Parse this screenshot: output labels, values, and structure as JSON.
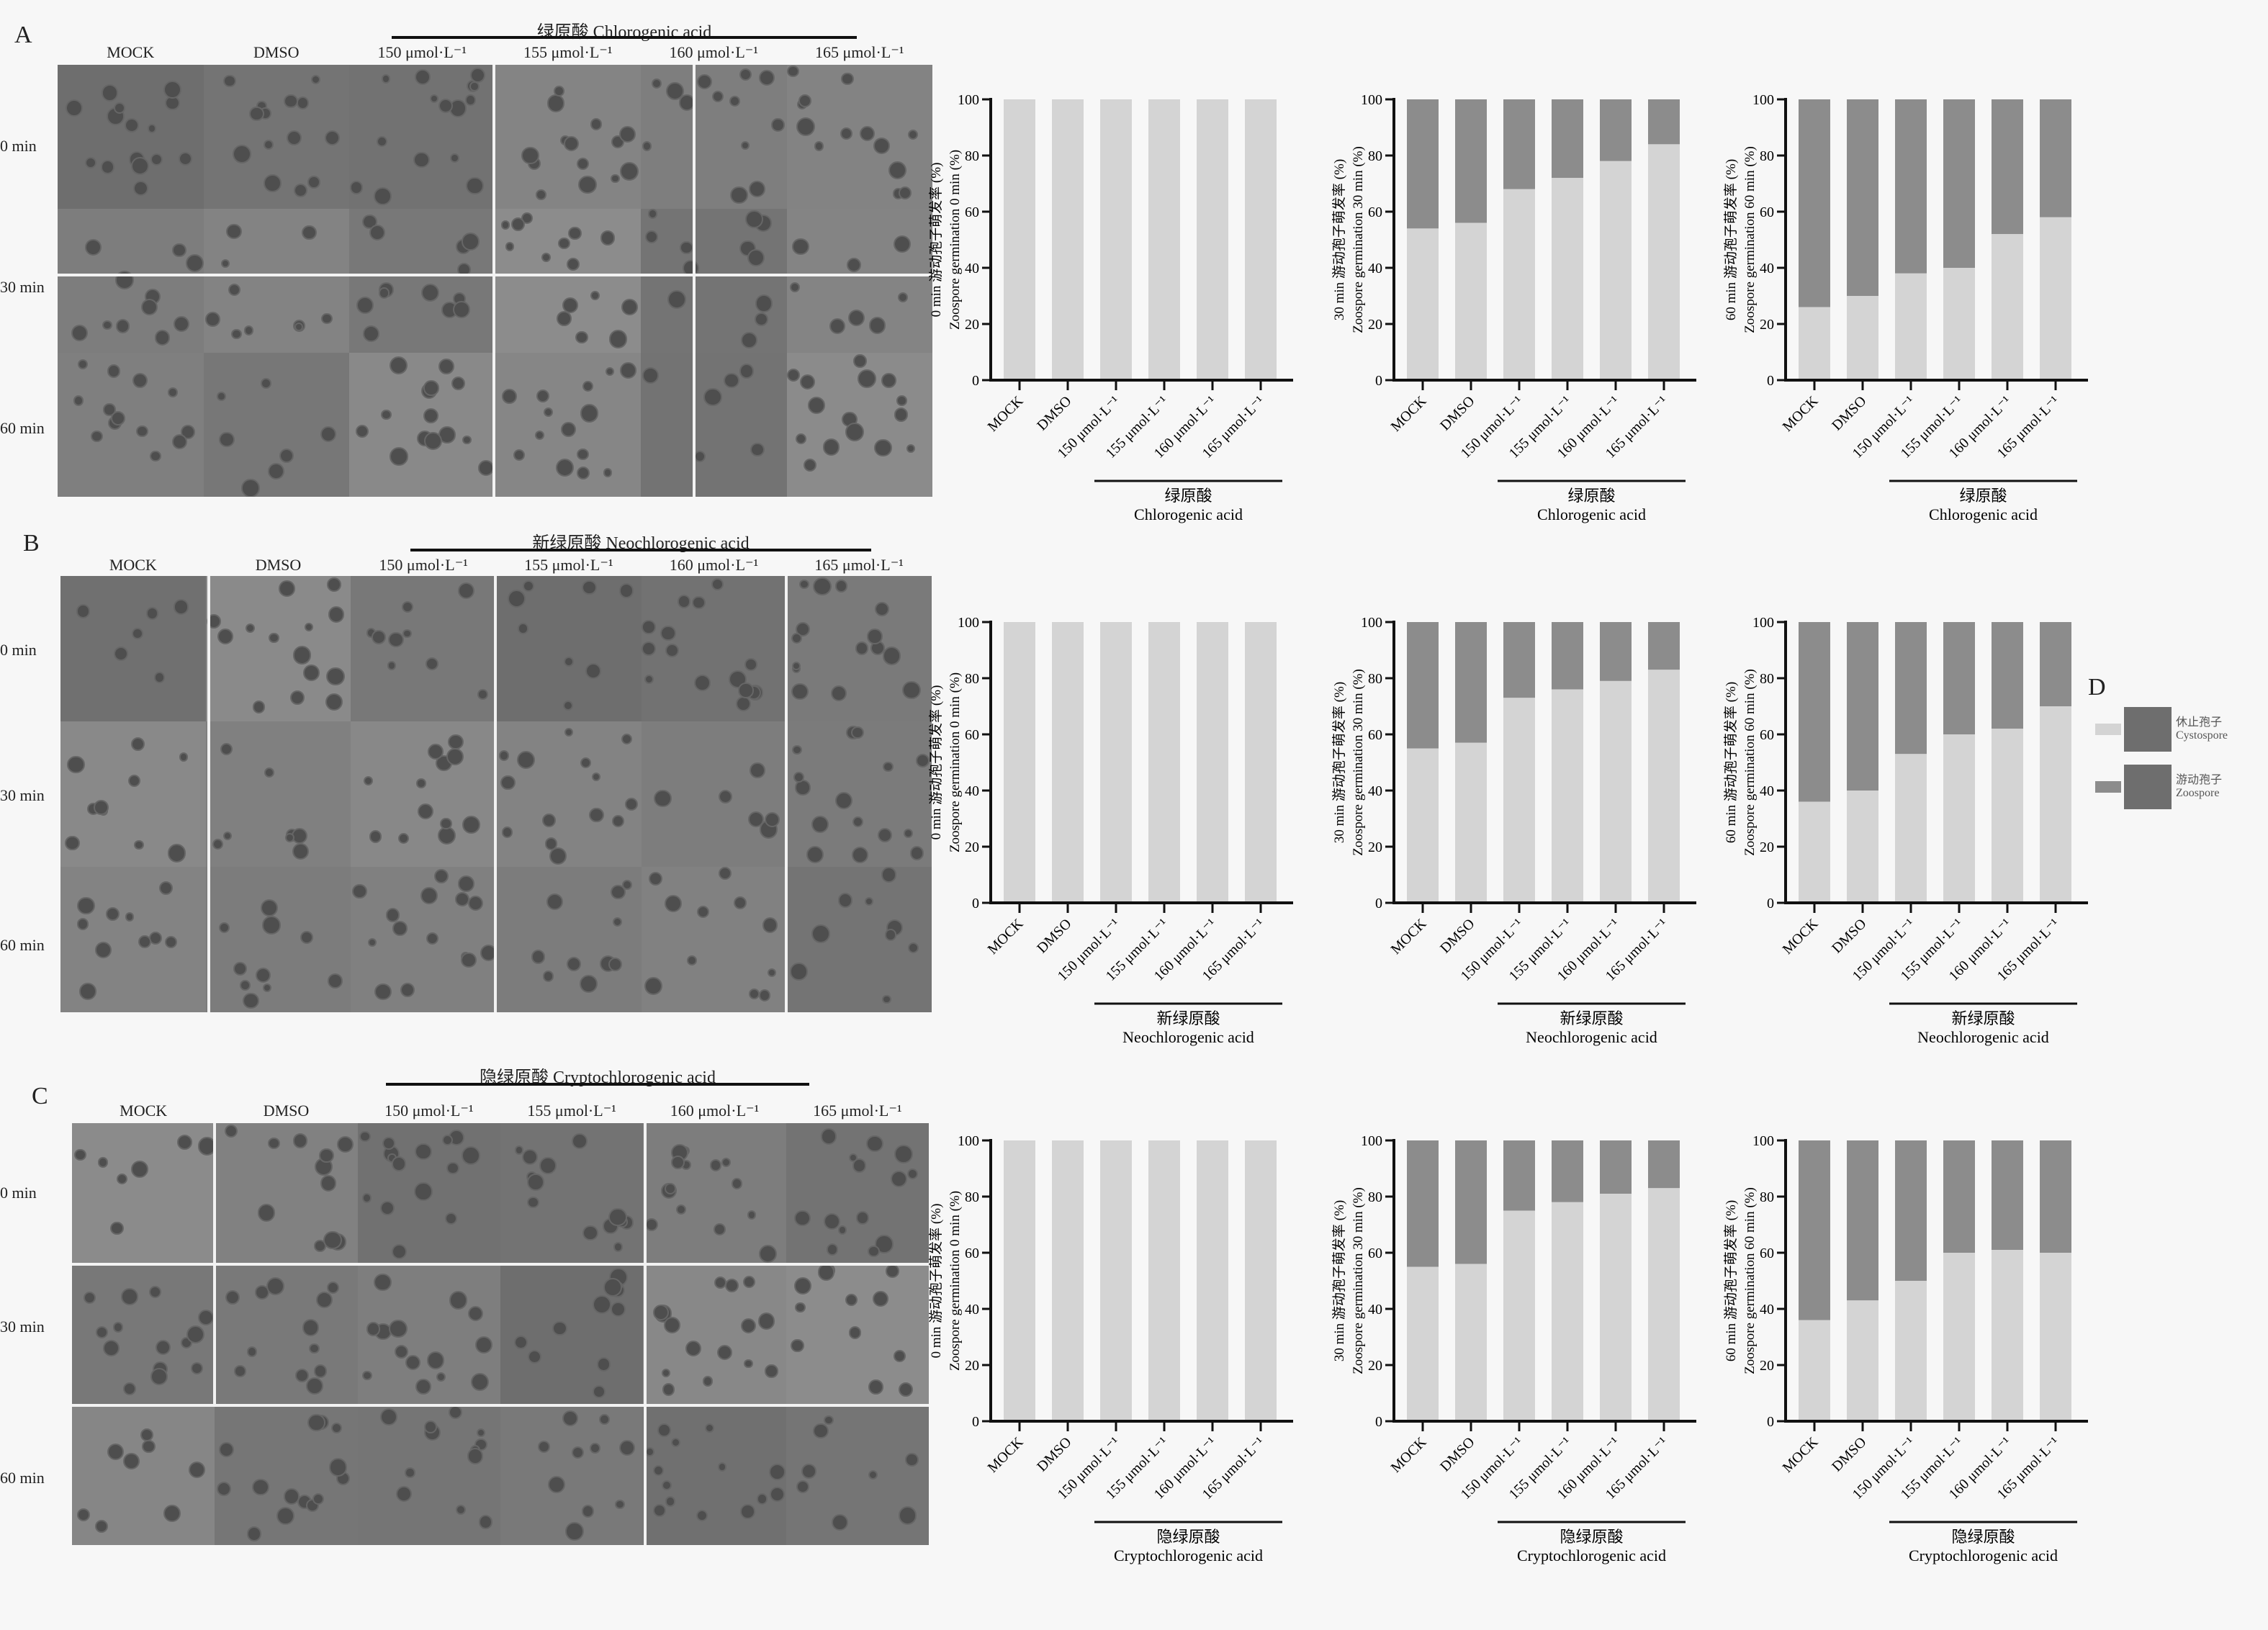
{
  "panels": [
    {
      "letter": "A",
      "title": "绿原酸 Chlorogenic acid",
      "columns": [
        "MOCK",
        "DMSO",
        "150 μmol·L⁻¹",
        "155 μmol·L⁻¹",
        "160 μmol·L⁻¹",
        "165 μmol·L⁻¹"
      ],
      "rows": [
        "0 min",
        "30 min",
        "60 min"
      ]
    },
    {
      "letter": "B",
      "title": "新绿原酸 Neochlorogenic acid",
      "columns": [
        "MOCK",
        "DMSO",
        "150 μmol·L⁻¹",
        "155 μmol·L⁻¹",
        "160 μmol·L⁻¹",
        "165 μmol·L⁻¹"
      ],
      "rows": [
        "0 min",
        "30 min",
        "60 min"
      ]
    },
    {
      "letter": "C",
      "title": "隐绿原酸 Cryptochlorogenic acid",
      "columns": [
        "MOCK",
        "DMSO",
        "150 μmol·L⁻¹",
        "155 μmol·L⁻¹",
        "160 μmol·L⁻¹",
        "165 μmol·L⁻¹"
      ],
      "rows": [
        "0 min",
        "30 min",
        "60 min"
      ]
    }
  ],
  "legend": {
    "letter": "D",
    "items": [
      {
        "label_cn": "休止孢子",
        "label_en": "Cystospore",
        "color": "#d4d4d4"
      },
      {
        "label_cn": "游动孢子",
        "label_en": "Zoospore",
        "color": "#8c8c8c"
      }
    ]
  },
  "colors": {
    "light": "#d4d4d4",
    "dark": "#8c8c8c",
    "axis": "#111111"
  },
  "chart_data": [
    {
      "type": "bar",
      "stacked": true,
      "panel": "A",
      "ylabel_cn": "0 min 游动孢子萌发率 (%)",
      "ylabel_en": "Zoospore germination 0 min (%)",
      "categories": [
        "MOCK",
        "DMSO",
        "150 μmol·L⁻¹",
        "155 μmol·L⁻¹",
        "160 μmol·L⁻¹",
        "165 μmol·L⁻¹"
      ],
      "group_cn": "绿原酸",
      "group_en": "Chlorogenic acid",
      "ylim": [
        0,
        100
      ],
      "yticks": [
        0,
        20,
        40,
        60,
        80,
        100
      ],
      "values": [
        100,
        100,
        100,
        100,
        100,
        100
      ]
    },
    {
      "type": "bar",
      "stacked": true,
      "panel": "A",
      "ylabel_cn": "30 min 游动孢子萌发率 (%)",
      "ylabel_en": "Zoospore germination 30 min (%)",
      "categories": [
        "MOCK",
        "DMSO",
        "150 μmol·L⁻¹",
        "155 μmol·L⁻¹",
        "160 μmol·L⁻¹",
        "165 μmol·L⁻¹"
      ],
      "group_cn": "绿原酸",
      "group_en": "Chlorogenic acid",
      "ylim": [
        0,
        100
      ],
      "yticks": [
        0,
        20,
        40,
        60,
        80,
        100
      ],
      "values": [
        54,
        56,
        68,
        72,
        78,
        84
      ]
    },
    {
      "type": "bar",
      "stacked": true,
      "panel": "A",
      "ylabel_cn": "60 min 游动孢子萌发率 (%)",
      "ylabel_en": "Zoospore germination 60 min (%)",
      "categories": [
        "MOCK",
        "DMSO",
        "150 μmol·L⁻¹",
        "155 μmol·L⁻¹",
        "160 μmol·L⁻¹",
        "165 μmol·L⁻¹"
      ],
      "group_cn": "绿原酸",
      "group_en": "Chlorogenic acid",
      "ylim": [
        0,
        100
      ],
      "yticks": [
        0,
        20,
        40,
        60,
        80,
        100
      ],
      "values": [
        26,
        30,
        38,
        40,
        52,
        58
      ]
    },
    {
      "type": "bar",
      "stacked": true,
      "panel": "B",
      "ylabel_cn": "0 min 游动孢子萌发率 (%)",
      "ylabel_en": "Zoospore germination 0 min (%)",
      "categories": [
        "MOCK",
        "DMSO",
        "150 μmol·L⁻¹",
        "155 μmol·L⁻¹",
        "160 μmol·L⁻¹",
        "165 μmol·L⁻¹"
      ],
      "group_cn": "新绿原酸",
      "group_en": "Neochlorogenic acid",
      "ylim": [
        0,
        100
      ],
      "yticks": [
        0,
        20,
        40,
        60,
        80,
        100
      ],
      "values": [
        100,
        100,
        100,
        100,
        100,
        100
      ]
    },
    {
      "type": "bar",
      "stacked": true,
      "panel": "B",
      "ylabel_cn": "30 min 游动孢子萌发率 (%)",
      "ylabel_en": "Zoospore germination 30 min (%)",
      "categories": [
        "MOCK",
        "DMSO",
        "150 μmol·L⁻¹",
        "155 μmol·L⁻¹",
        "160 μmol·L⁻¹",
        "165 μmol·L⁻¹"
      ],
      "group_cn": "新绿原酸",
      "group_en": "Neochlorogenic acid",
      "ylim": [
        0,
        100
      ],
      "yticks": [
        0,
        20,
        40,
        60,
        80,
        100
      ],
      "values": [
        55,
        57,
        73,
        76,
        79,
        83
      ]
    },
    {
      "type": "bar",
      "stacked": true,
      "panel": "B",
      "ylabel_cn": "60 min 游动孢子萌发率 (%)",
      "ylabel_en": "Zoospore germination 60 min (%)",
      "categories": [
        "MOCK",
        "DMSO",
        "150 μmol·L⁻¹",
        "155 μmol·L⁻¹",
        "160 μmol·L⁻¹",
        "165 μmol·L⁻¹"
      ],
      "group_cn": "新绿原酸",
      "group_en": "Neochlorogenic acid",
      "ylim": [
        0,
        100
      ],
      "yticks": [
        0,
        20,
        40,
        60,
        80,
        100
      ],
      "values": [
        36,
        40,
        53,
        60,
        62,
        70
      ]
    },
    {
      "type": "bar",
      "stacked": true,
      "panel": "C",
      "ylabel_cn": "0 min 游动孢子萌发率 (%)",
      "ylabel_en": "Zoospore germination 0 min (%)",
      "categories": [
        "MOCK",
        "DMSO",
        "150 μmol·L⁻¹",
        "155 μmol·L⁻¹",
        "160 μmol·L⁻¹",
        "165 μmol·L⁻¹"
      ],
      "group_cn": "隐绿原酸",
      "group_en": "Cryptochlorogenic acid",
      "ylim": [
        0,
        100
      ],
      "yticks": [
        0,
        20,
        40,
        60,
        80,
        100
      ],
      "values": [
        100,
        100,
        100,
        100,
        100,
        100
      ]
    },
    {
      "type": "bar",
      "stacked": true,
      "panel": "C",
      "ylabel_cn": "30 min 游动孢子萌发率 (%)",
      "ylabel_en": "Zoospore germination 30 min (%)",
      "categories": [
        "MOCK",
        "DMSO",
        "150 μmol·L⁻¹",
        "155 μmol·L⁻¹",
        "160 μmol·L⁻¹",
        "165 μmol·L⁻¹"
      ],
      "group_cn": "隐绿原酸",
      "group_en": "Cryptochlorogenic acid",
      "ylim": [
        0,
        100
      ],
      "yticks": [
        0,
        20,
        40,
        60,
        80,
        100
      ],
      "values": [
        55,
        56,
        75,
        78,
        81,
        83
      ]
    },
    {
      "type": "bar",
      "stacked": true,
      "panel": "C",
      "ylabel_cn": "60 min 游动孢子萌发率 (%)",
      "ylabel_en": "Zoospore germination 60 min (%)",
      "categories": [
        "MOCK",
        "DMSO",
        "150 μmol·L⁻¹",
        "155 μmol·L⁻¹",
        "160 μmol·L⁻¹",
        "165 μmol·L⁻¹"
      ],
      "group_cn": "隐绿原酸",
      "group_en": "Cryptochlorogenic acid",
      "ylim": [
        0,
        100
      ],
      "yticks": [
        0,
        20,
        40,
        60,
        80,
        100
      ],
      "values": [
        36,
        43,
        50,
        60,
        61,
        60
      ]
    }
  ]
}
